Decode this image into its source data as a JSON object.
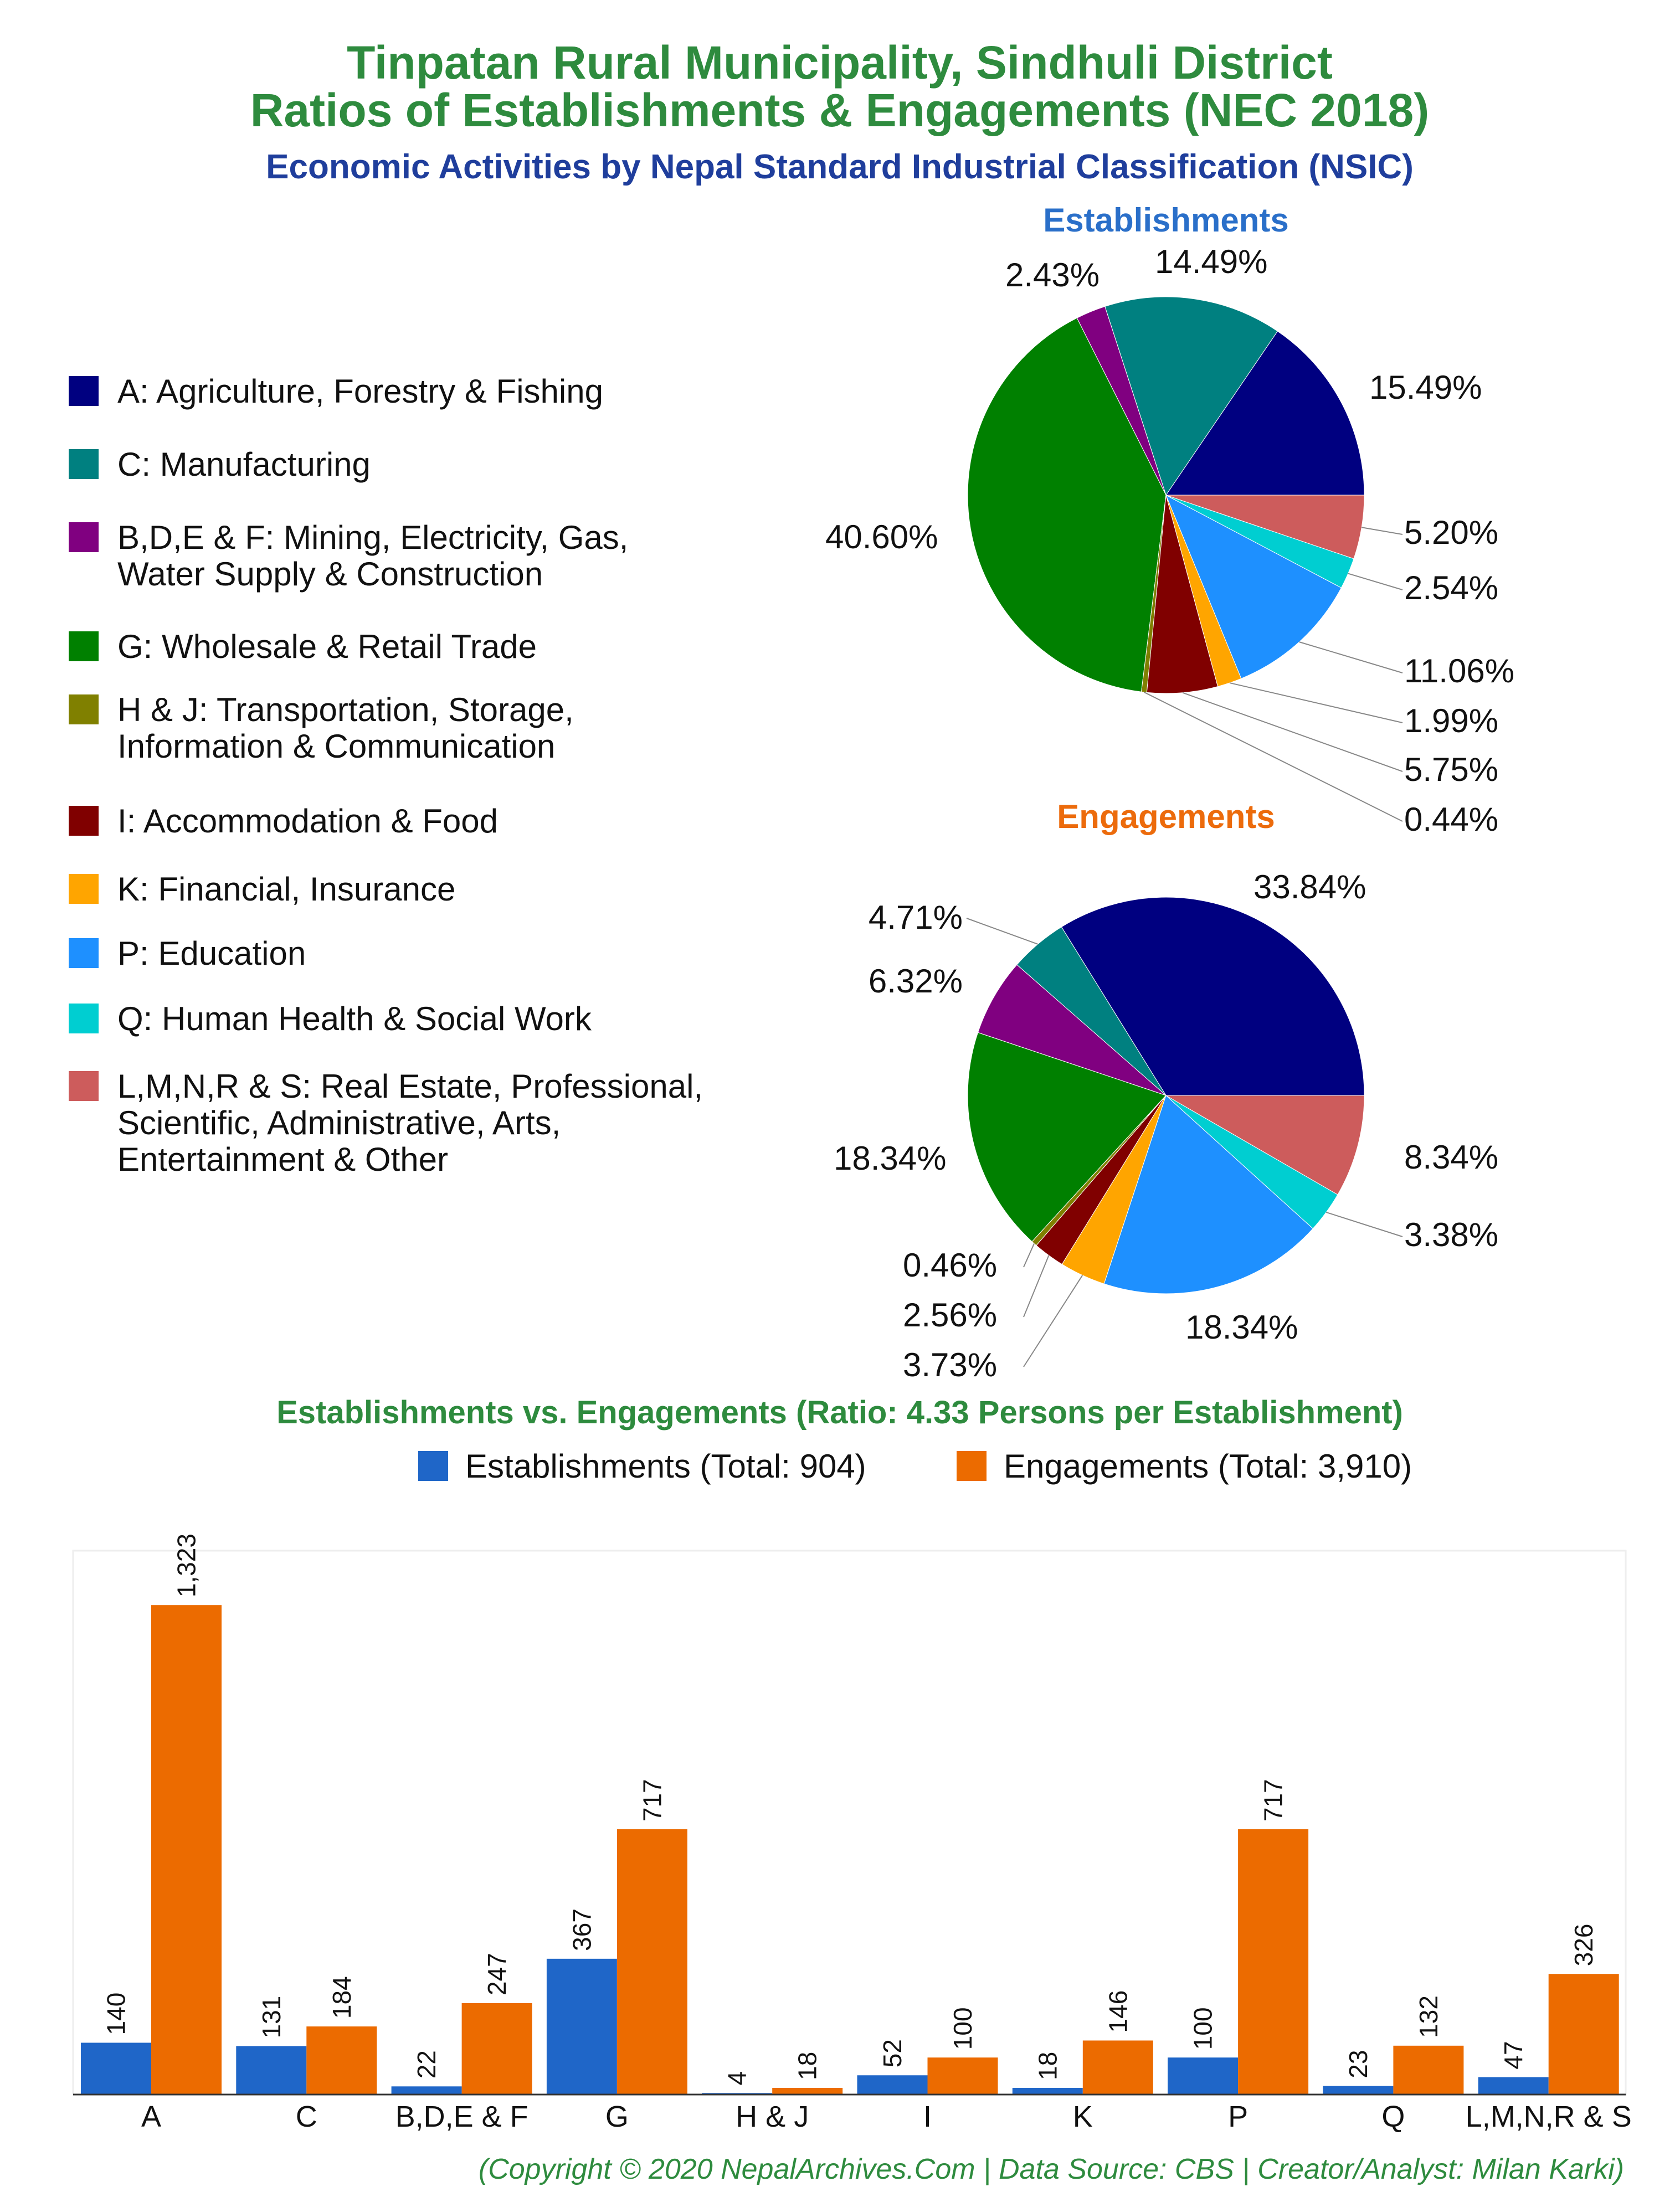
{
  "title_line1": "Tinpatan Rural Municipality, Sindhuli District",
  "title_line2": "Ratios of Establishments & Engagements (NEC 2018)",
  "subtitle": "Economic Activities by Nepal Standard Industrial Classification (NSIC)",
  "colors": {
    "title": "#2e8b3e",
    "subtitle": "#1f3e9c",
    "establishments_title": "#2a6fc9",
    "engagements_title": "#ec6b0c",
    "bar_establishments": "#1f66c8",
    "bar_engagements": "#ec6b00",
    "copyright": "#2e8b3e"
  },
  "legend": [
    {
      "lines": [
        "A: Agriculture, Forestry & Fishing"
      ],
      "color": "#000080",
      "icon": "square-swatch"
    },
    {
      "lines": [
        "C: Manufacturing"
      ],
      "color": "#008080",
      "icon": "square-swatch"
    },
    {
      "lines": [
        "B,D,E & F: Mining, Electricity, Gas,",
        "Water Supply & Construction"
      ],
      "color": "#800080",
      "icon": "square-swatch"
    },
    {
      "lines": [
        "G: Wholesale & Retail Trade"
      ],
      "color": "#008000",
      "icon": "square-swatch"
    },
    {
      "lines": [
        "H & J: Transportation, Storage,",
        "Information & Communication"
      ],
      "color": "#808000",
      "icon": "square-swatch"
    },
    {
      "lines": [
        "I: Accommodation & Food"
      ],
      "color": "#800000",
      "icon": "square-swatch"
    },
    {
      "lines": [
        "K: Financial, Insurance"
      ],
      "color": "#ffa500",
      "icon": "square-swatch"
    },
    {
      "lines": [
        "P: Education"
      ],
      "color": "#1e90ff",
      "icon": "square-swatch"
    },
    {
      "lines": [
        "Q: Human Health & Social Work"
      ],
      "color": "#00ced1",
      "icon": "square-swatch"
    },
    {
      "lines": [
        "L,M,N,R & S: Real Estate, Professional,",
        "Scientific, Administrative, Arts,",
        "Entertainment & Other"
      ],
      "color": "#cd5c5c",
      "icon": "square-swatch"
    }
  ],
  "establishments_title": "Establishments",
  "engagements_title": "Engagements",
  "bar_title": "Establishments vs. Engagements (Ratio: 4.33 Persons per Establishment)",
  "bar_legend": [
    {
      "label": "Establishments (Total: 904)",
      "icon": "square-swatch"
    },
    {
      "label": "Engagements (Total: 3,910)",
      "icon": "square-swatch"
    }
  ],
  "copyright": "(Copyright © 2020 NepalArchives.Com | Data Source: CBS | Creator/Analyst: Milan Karki)",
  "chart_data": [
    {
      "type": "pie",
      "title": "Establishments",
      "labels": [
        "A",
        "C",
        "B,D,E & F",
        "G",
        "H & J",
        "I",
        "K",
        "P",
        "Q",
        "L,M,N,R & S"
      ],
      "values": [
        15.49,
        14.49,
        2.43,
        40.6,
        0.44,
        5.75,
        1.99,
        11.06,
        2.54,
        5.2
      ],
      "value_labels": [
        "15.49%",
        "14.49%",
        "2.43%",
        "40.60%",
        "0.44%",
        "5.75%",
        "1.99%",
        "11.06%",
        "2.54%",
        "5.20%"
      ]
    },
    {
      "type": "pie",
      "title": "Engagements",
      "labels": [
        "A",
        "C",
        "B,D,E & F",
        "G",
        "H & J",
        "I",
        "K",
        "P",
        "Q",
        "L,M,N,R & S"
      ],
      "values": [
        33.84,
        4.71,
        6.32,
        18.34,
        0.46,
        2.56,
        3.73,
        18.34,
        3.38,
        8.34
      ],
      "value_labels": [
        "33.84%",
        "4.71%",
        "6.32%",
        "18.34%",
        "0.46%",
        "2.56%",
        "3.73%",
        "18.34%",
        "3.38%",
        "8.34%"
      ]
    },
    {
      "type": "bar",
      "title": "Establishments vs. Engagements (Ratio: 4.33 Persons per Establishment)",
      "categories": [
        "A",
        "C",
        "B,D,E & F",
        "G",
        "H & J",
        "I",
        "K",
        "P",
        "Q",
        "L,M,N,R & S"
      ],
      "series": [
        {
          "name": "Establishments (Total: 904)",
          "values": [
            140,
            131,
            22,
            367,
            4,
            52,
            18,
            100,
            23,
            47
          ],
          "value_labels": [
            "140",
            "131",
            "22",
            "367",
            "4",
            "52",
            "18",
            "100",
            "23",
            "47"
          ]
        },
        {
          "name": "Engagements (Total: 3,910)",
          "values": [
            1323,
            184,
            247,
            717,
            18,
            100,
            146,
            717,
            132,
            326
          ],
          "value_labels": [
            "1,323",
            "184",
            "247",
            "717",
            "18",
            "100",
            "146",
            "717",
            "132",
            "326"
          ]
        }
      ],
      "ylim": [
        0,
        1470
      ],
      "grid": false
    }
  ]
}
